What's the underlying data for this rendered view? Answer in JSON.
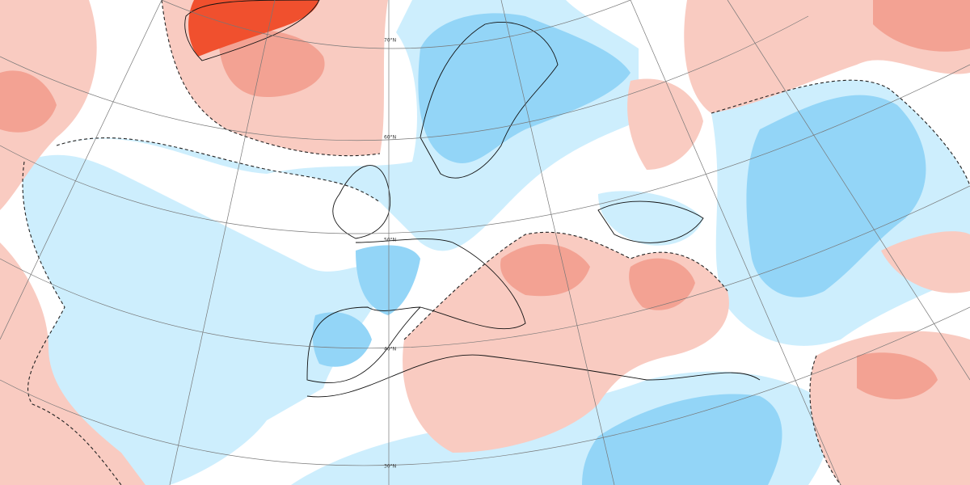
{
  "graticule_labels": [
    "70°N",
    "60°N",
    "50°N",
    "40°N",
    "30°N"
  ]
}
